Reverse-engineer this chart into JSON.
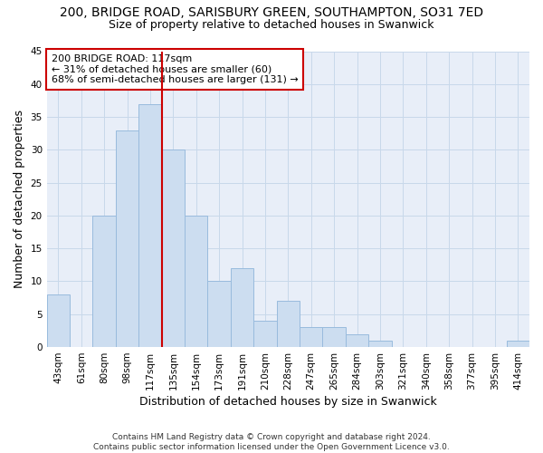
{
  "title_line1": "200, BRIDGE ROAD, SARISBURY GREEN, SOUTHAMPTON, SO31 7ED",
  "title_line2": "Size of property relative to detached houses in Swanwick",
  "xlabel": "Distribution of detached houses by size in Swanwick",
  "ylabel": "Number of detached properties",
  "categories": [
    "43sqm",
    "61sqm",
    "80sqm",
    "98sqm",
    "117sqm",
    "135sqm",
    "154sqm",
    "173sqm",
    "191sqm",
    "210sqm",
    "228sqm",
    "247sqm",
    "265sqm",
    "284sqm",
    "303sqm",
    "321sqm",
    "340sqm",
    "358sqm",
    "377sqm",
    "395sqm",
    "414sqm"
  ],
  "values": [
    8,
    0,
    20,
    33,
    37,
    30,
    20,
    10,
    12,
    4,
    7,
    3,
    3,
    2,
    1,
    0,
    0,
    0,
    0,
    0,
    1
  ],
  "bar_color": "#ccddf0",
  "bar_edge_color": "#99bbdd",
  "vline_color": "#cc0000",
  "annotation_title": "200 BRIDGE ROAD: 117sqm",
  "annotation_line2": "← 31% of detached houses are smaller (60)",
  "annotation_line3": "68% of semi-detached houses are larger (131) →",
  "annotation_box_edgecolor": "#cc0000",
  "annotation_box_facecolor": "#ffffff",
  "ylim": [
    0,
    45
  ],
  "yticks": [
    0,
    5,
    10,
    15,
    20,
    25,
    30,
    35,
    40,
    45
  ],
  "footer_line1": "Contains HM Land Registry data © Crown copyright and database right 2024.",
  "footer_line2": "Contains public sector information licensed under the Open Government Licence v3.0.",
  "title_fontsize": 10,
  "subtitle_fontsize": 9,
  "axis_label_fontsize": 9,
  "tick_fontsize": 7.5,
  "annotation_fontsize": 8,
  "footer_fontsize": 6.5
}
